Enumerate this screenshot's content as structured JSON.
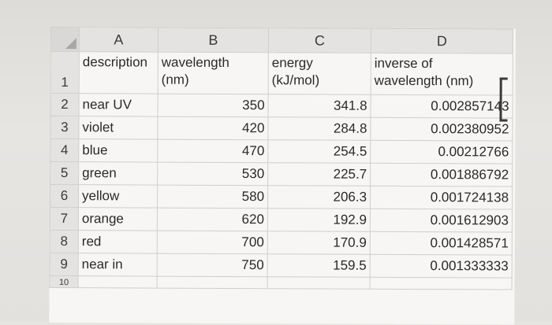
{
  "columns": [
    "A",
    "B",
    "C",
    "D"
  ],
  "header_row": {
    "row_number": "1",
    "description": "description",
    "wavelength_line1": "wavelength",
    "wavelength_line2": "(nm)",
    "energy_line1": "energy",
    "energy_line2": "(kJ/mol)",
    "inverse_line1": "inverse of",
    "inverse_line2": "wavelength (nm)"
  },
  "rows": [
    {
      "n": "2",
      "description": "near UV",
      "wavelength": "350",
      "energy": "341.8",
      "inverse": "0.002857143"
    },
    {
      "n": "3",
      "description": "violet",
      "wavelength": "420",
      "energy": "284.8",
      "inverse": "0.002380952"
    },
    {
      "n": "4",
      "description": "blue",
      "wavelength": "470",
      "energy": "254.5",
      "inverse": "0.00212766"
    },
    {
      "n": "5",
      "description": "green",
      "wavelength": "530",
      "energy": "225.7",
      "inverse": "0.001886792"
    },
    {
      "n": "6",
      "description": "yellow",
      "wavelength": "580",
      "energy": "206.3",
      "inverse": "0.001724138"
    },
    {
      "n": "7",
      "description": "orange",
      "wavelength": "620",
      "energy": "192.9",
      "inverse": "0.001612903"
    },
    {
      "n": "8",
      "description": "red",
      "wavelength": "700",
      "energy": "170.9",
      "inverse": "0.001428571"
    },
    {
      "n": "9",
      "description": "near in",
      "wavelength": "750",
      "energy": "159.5",
      "inverse": "0.001333333"
    }
  ],
  "partial_row_number": "10"
}
